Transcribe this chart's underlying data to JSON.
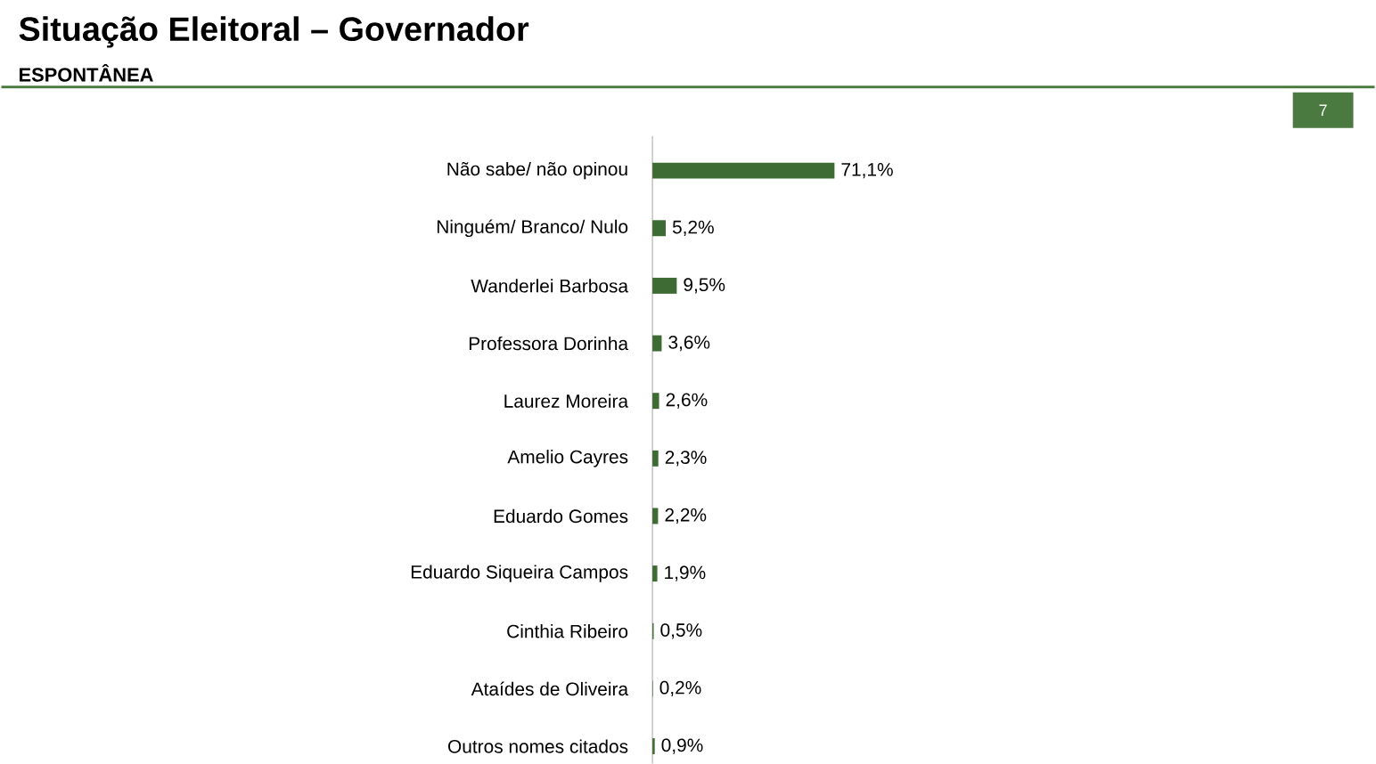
{
  "chart_data": {
    "type": "bar",
    "orientation": "horizontal",
    "title": "Situação Eleitoral – Governador",
    "subtitle": "ESPONTÂNEA",
    "categories": [
      "Não sabe/ não opinou",
      "Ninguém/ Branco/ Nulo",
      "Wanderlei Barbosa",
      "Professora Dorinha",
      "Laurez Moreira",
      "Amelio Cayres",
      "Eduardo Gomes",
      "Eduardo Siqueira Campos",
      "Cinthia Ribeiro",
      "Ataídes de Oliveira",
      "Outros nomes citados"
    ],
    "values": [
      71.1,
      5.2,
      9.5,
      3.6,
      2.6,
      2.3,
      2.2,
      1.9,
      0.5,
      0.2,
      0.9
    ],
    "value_labels": [
      "71,1%",
      "5,2%",
      "9,5%",
      "3,6%",
      "2,6%",
      "2,3%",
      "2,2%",
      "1,9%",
      "0,5%",
      "0,2%",
      "0,9%"
    ],
    "color": "#3e6b34",
    "annotations": [
      "7"
    ]
  }
}
